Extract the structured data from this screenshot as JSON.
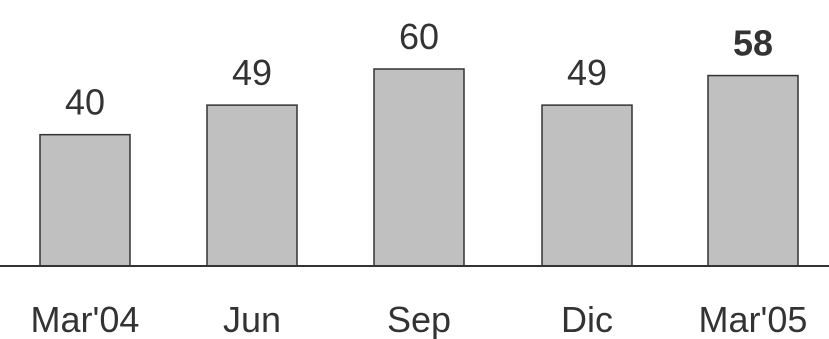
{
  "chart_data": {
    "type": "bar",
    "title": "",
    "categories": [
      "Mar'04",
      "Jun",
      "Sep",
      "Dic",
      "Mar'05"
    ],
    "values": [
      40,
      49,
      60,
      49,
      58
    ],
    "value_labels": [
      "40",
      "49",
      "60",
      "49",
      "58"
    ],
    "highlight_index": 4,
    "xlabel": "",
    "ylabel": "",
    "ylim": [
      0,
      60
    ],
    "grid": false,
    "bar_color": "#c0c0c0",
    "outline_color": "#333333"
  }
}
